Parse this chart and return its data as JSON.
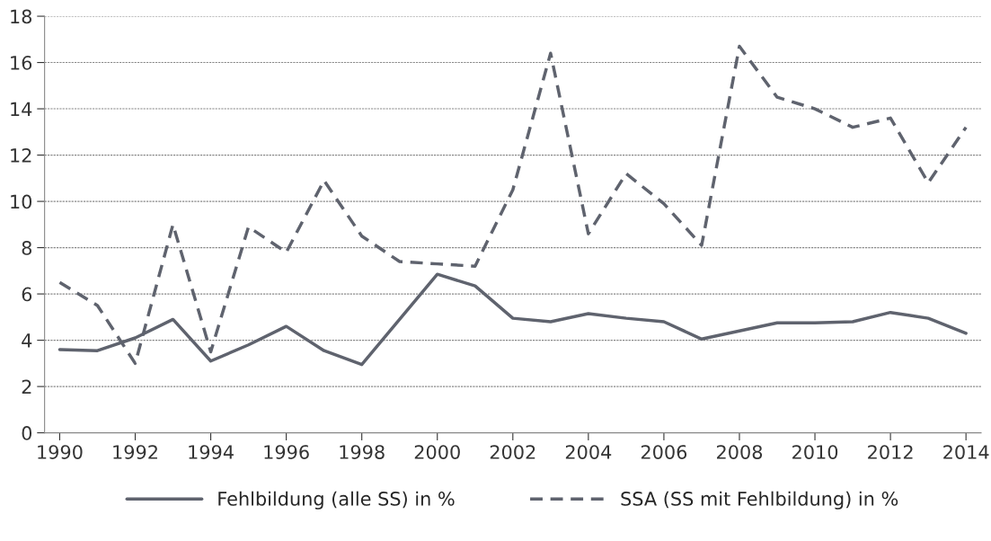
{
  "chart_data": {
    "type": "line",
    "x": [
      1990,
      1991,
      1992,
      1993,
      1994,
      1995,
      1996,
      1997,
      1998,
      1999,
      2000,
      2001,
      2002,
      2003,
      2004,
      2005,
      2006,
      2007,
      2008,
      2009,
      2010,
      2011,
      2012,
      2013,
      2014
    ],
    "series": [
      {
        "name": "Fehlbildung (alle SS) in %",
        "color": "#5f636e",
        "line_style": "solid",
        "values": [
          3.6,
          3.55,
          4.1,
          4.9,
          3.1,
          3.8,
          4.6,
          3.55,
          2.95,
          4.9,
          6.85,
          6.35,
          4.95,
          4.8,
          5.15,
          4.95,
          4.8,
          4.05,
          4.4,
          4.75,
          4.75,
          4.8,
          5.2,
          4.95,
          4.3
        ]
      },
      {
        "name": "SSA (SS mit Fehlbildung) in %",
        "color": "#5f636e",
        "line_style": "dashed",
        "values": [
          6.5,
          5.5,
          3.0,
          9.0,
          3.5,
          8.9,
          7.8,
          10.9,
          8.5,
          7.4,
          7.3,
          7.2,
          10.5,
          16.4,
          8.6,
          11.2,
          9.9,
          8.1,
          16.7,
          14.5,
          14.0,
          13.2,
          13.6,
          10.8,
          13.2
        ]
      }
    ],
    "xlim": [
      1989.6,
      2014.4
    ],
    "xticks": [
      1990,
      1992,
      1994,
      1996,
      1998,
      2000,
      2002,
      2004,
      2006,
      2008,
      2010,
      2012,
      2014
    ],
    "ylim": [
      0,
      18
    ],
    "yticks": [
      0,
      2,
      4,
      6,
      8,
      10,
      12,
      14,
      16,
      18
    ],
    "grid": "y",
    "legend": "bottom"
  }
}
